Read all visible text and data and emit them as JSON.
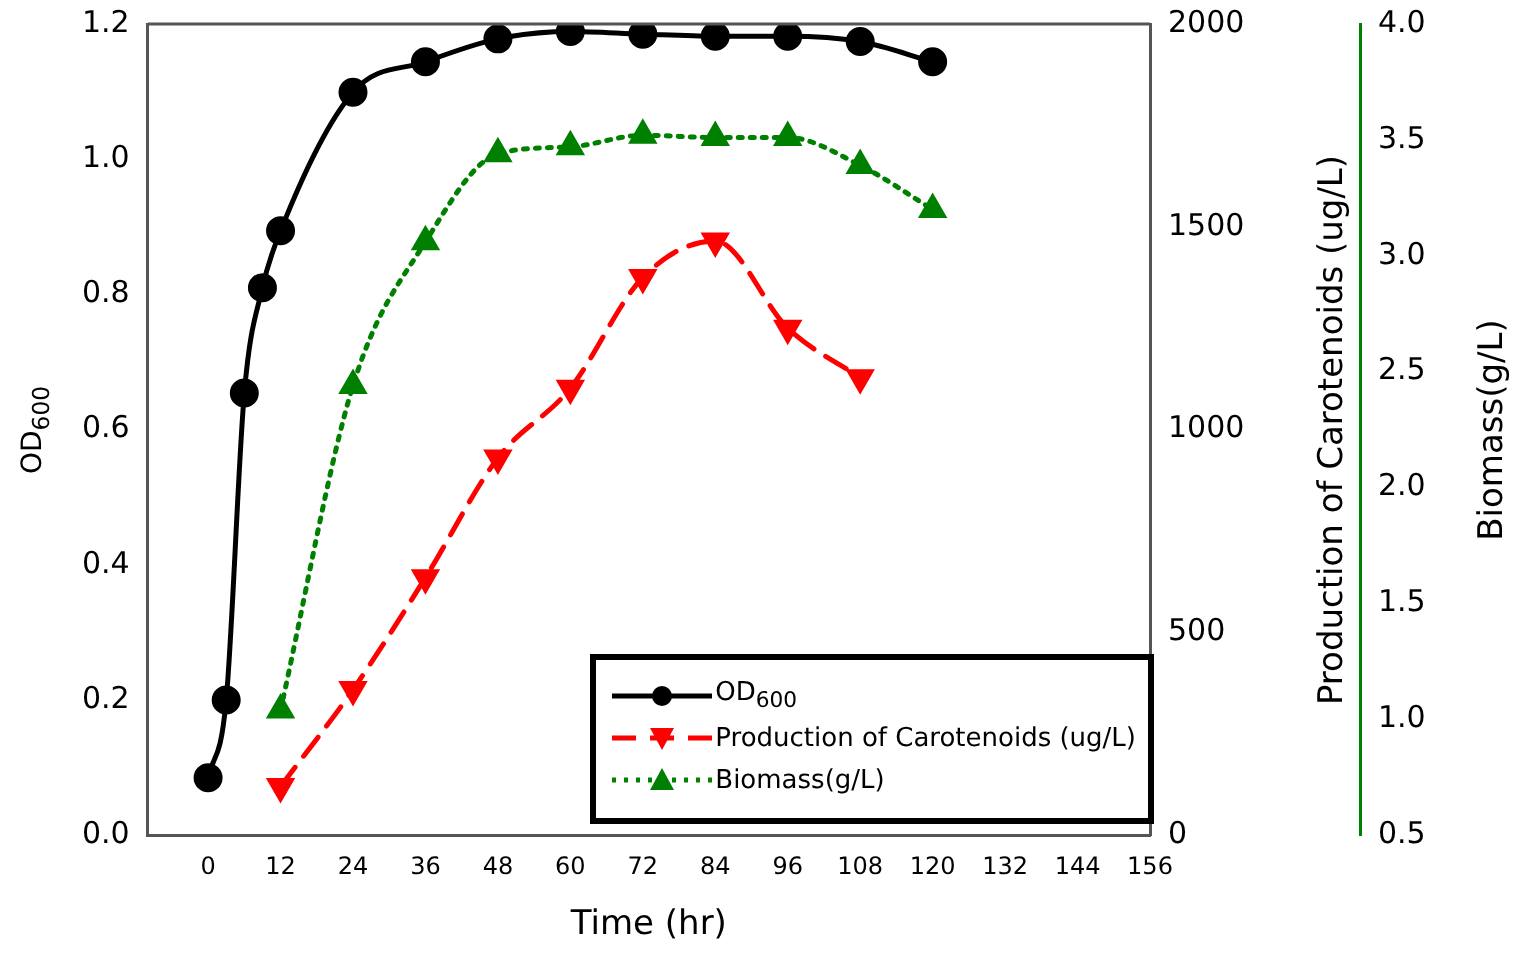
{
  "chart_data": {
    "type": "line",
    "xlabel": "Time (hr)",
    "ylabel": "OD$_{600}$",
    "y2label": "Production of Carotenoids (ug/L)",
    "y3label": "Biomass(g/L)",
    "xlim": [
      -10,
      156
    ],
    "xticks": [
      0,
      12,
      24,
      36,
      48,
      60,
      72,
      84,
      96,
      108,
      120,
      132,
      144,
      156
    ],
    "ylim": [
      0,
      1.2
    ],
    "yticks": [
      {
        "value": 0,
        "label": "0.0"
      },
      0.2,
      0.4,
      0.6,
      0.8,
      {
        "value": 1,
        "label": "1.0"
      },
      1.2
    ],
    "y2lim": [
      0,
      2000
    ],
    "y2ticks": [
      0,
      500,
      1000,
      1500,
      2000
    ],
    "y3lim": [
      0.5,
      4
    ],
    "y3ticks": [
      0.5,
      {
        "value": 1,
        "label": "1.0"
      },
      1.5,
      {
        "value": 2,
        "label": "2.0"
      },
      2.5,
      {
        "value": 3,
        "label": "3.0"
      },
      3.5,
      {
        "value": 4,
        "label": "4.0"
      }
    ],
    "grid": false,
    "legend": "bottom right",
    "series": [
      {
        "name": "OD$_{600}$",
        "color": "#000000",
        "marker": "circle",
        "line_style": "solid",
        "x": [
          0,
          3,
          6,
          9,
          12,
          24,
          36,
          48,
          60,
          72,
          84,
          96,
          108,
          120
        ],
        "values": [
          0.085,
          0.2,
          0.654,
          0.81,
          0.894,
          1.099,
          1.144,
          1.178,
          1.189,
          1.185,
          1.182,
          1.182,
          1.174,
          1.144
        ]
      },
      {
        "name": "Production of Carotenoids (ug/L)",
        "color": "#ff0000",
        "marker": "triangle-down",
        "line_style": "dashed",
        "axis": "y2",
        "x": [
          12,
          24,
          36,
          48,
          60,
          72,
          84,
          96,
          108
        ],
        "values": [
          120,
          359,
          635,
          930,
          1102,
          1375,
          1465,
          1250,
          1128
        ]
      },
      {
        "name": "Biomass(g/L)",
        "color": "#008000",
        "marker": "triangle",
        "line_style": "dotted",
        "axis": "y3",
        "x": [
          12,
          24,
          36,
          48,
          60,
          72,
          84,
          96,
          108,
          120
        ],
        "values": [
          1.04,
          2.44,
          3.06,
          3.44,
          3.47,
          3.52,
          3.51,
          3.51,
          3.39,
          3.2
        ]
      }
    ]
  }
}
